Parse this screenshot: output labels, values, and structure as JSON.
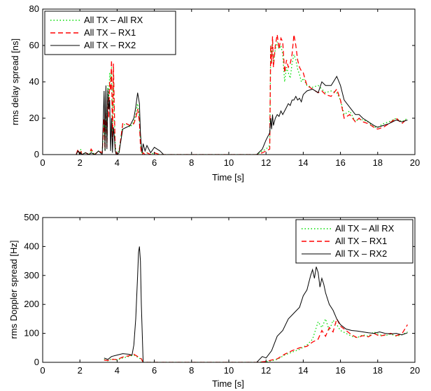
{
  "chart_data": [
    {
      "type": "line",
      "title": "",
      "xlabel": "Time [s]",
      "ylabel": "rms delay spread [ns]",
      "xlim": [
        0,
        20
      ],
      "ylim": [
        0,
        80
      ],
      "xticks": [
        0,
        2,
        4,
        6,
        8,
        10,
        12,
        14,
        16,
        18,
        20
      ],
      "yticks": [
        0,
        20,
        40,
        60,
        80
      ],
      "grid": false,
      "legend_position": "top-left",
      "series": [
        {
          "name": "All TX – All RX",
          "color": "#00dd00",
          "style": "dotted",
          "x": [
            1.8,
            1.9,
            2.0,
            2.05,
            2.1,
            2.3,
            2.5,
            2.6,
            2.8,
            3.0,
            3.2,
            3.3,
            3.35,
            3.4,
            3.45,
            3.5,
            3.55,
            3.6,
            3.65,
            3.7,
            3.75,
            3.8,
            3.85,
            3.9,
            3.95,
            4.0,
            4.1,
            4.3,
            4.5,
            4.7,
            4.9,
            5.0,
            5.1,
            5.2,
            5.25,
            5.3,
            5.35,
            5.4,
            5.5,
            5.6,
            5.8,
            6.0,
            6.3,
            6.5,
            11.5,
            11.8,
            12.0,
            12.2,
            12.25,
            12.3,
            12.35,
            12.4,
            12.5,
            12.6,
            12.7,
            12.8,
            12.9,
            13.0,
            13.1,
            13.2,
            13.3,
            13.4,
            13.5,
            13.6,
            13.7,
            13.8,
            13.9,
            14.0,
            14.2,
            14.5,
            14.8,
            15.0,
            15.2,
            15.5,
            15.8,
            16.0,
            16.2,
            16.5,
            16.8,
            17.0,
            17.2,
            17.5,
            17.8,
            18.0,
            18.3,
            18.6,
            19.0,
            19.3,
            19.6
          ],
          "y": [
            0,
            2,
            0,
            3,
            0,
            1,
            0,
            2,
            0,
            2,
            1,
            18,
            2,
            28,
            5,
            38,
            30,
            45,
            40,
            48,
            10,
            44,
            20,
            5,
            1,
            0,
            2,
            16,
            17,
            15,
            18,
            22,
            28,
            20,
            8,
            2,
            0,
            1,
            0,
            1,
            0,
            1,
            0,
            0,
            0,
            2,
            3,
            5,
            60,
            55,
            62,
            50,
            58,
            62,
            58,
            60,
            55,
            40,
            48,
            45,
            42,
            50,
            55,
            52,
            47,
            44,
            40,
            42,
            38,
            37,
            38,
            36,
            34,
            35,
            34,
            30,
            22,
            24,
            18,
            20,
            19,
            18,
            15,
            15,
            17,
            18,
            20,
            18,
            20
          ]
        },
        {
          "name": "All TX – RX1",
          "color": "#ff0000",
          "style": "dashed",
          "x": [
            1.8,
            1.9,
            2.0,
            2.05,
            2.1,
            2.3,
            2.5,
            2.6,
            2.8,
            3.0,
            3.2,
            3.3,
            3.35,
            3.4,
            3.45,
            3.5,
            3.55,
            3.6,
            3.65,
            3.7,
            3.75,
            3.8,
            3.85,
            3.9,
            3.95,
            4.0,
            4.1,
            4.3,
            4.5,
            4.7,
            4.9,
            5.0,
            5.1,
            5.2,
            5.25,
            5.3,
            5.35,
            5.4,
            5.5,
            5.6,
            5.8,
            6.0,
            6.3,
            6.5,
            11.5,
            11.8,
            12.0,
            12.2,
            12.25,
            12.3,
            12.35,
            12.4,
            12.5,
            12.6,
            12.7,
            12.8,
            12.9,
            13.0,
            13.1,
            13.2,
            13.3,
            13.4,
            13.5,
            13.6,
            13.7,
            13.8,
            13.9,
            14.0,
            14.2,
            14.5,
            14.8,
            15.0,
            15.2,
            15.5,
            15.8,
            16.0,
            16.2,
            16.5,
            16.8,
            17.0,
            17.2,
            17.5,
            17.8,
            18.0,
            18.3,
            18.6,
            19.0,
            19.3,
            19.6
          ],
          "y": [
            0,
            3,
            0,
            2,
            0,
            1,
            0,
            3,
            0,
            2,
            1,
            20,
            3,
            30,
            4,
            32,
            20,
            40,
            35,
            52,
            5,
            50,
            25,
            3,
            1,
            0,
            1,
            17,
            17,
            16,
            17,
            20,
            25,
            18,
            5,
            1,
            0,
            1,
            0,
            1,
            0,
            1,
            0,
            0,
            0,
            1,
            2,
            3,
            60,
            50,
            65,
            48,
            60,
            66,
            58,
            64,
            62,
            45,
            52,
            48,
            50,
            55,
            66,
            60,
            52,
            48,
            46,
            45,
            38,
            36,
            34,
            35,
            33,
            32,
            36,
            30,
            20,
            22,
            18,
            20,
            18,
            17,
            15,
            14,
            15,
            17,
            20,
            17,
            20
          ]
        },
        {
          "name": "All TX – RX2",
          "color": "#000000",
          "style": "solid",
          "x": [
            1.8,
            1.9,
            2.0,
            2.05,
            2.1,
            2.3,
            2.5,
            2.6,
            2.8,
            3.0,
            3.2,
            3.3,
            3.35,
            3.4,
            3.45,
            3.5,
            3.55,
            3.6,
            3.65,
            3.7,
            3.75,
            3.8,
            3.85,
            3.9,
            3.95,
            4.0,
            4.1,
            4.3,
            4.5,
            4.7,
            4.9,
            5.0,
            5.1,
            5.2,
            5.25,
            5.3,
            5.35,
            5.4,
            5.5,
            5.6,
            5.8,
            6.0,
            6.3,
            6.5,
            11.5,
            11.8,
            12.0,
            12.2,
            12.25,
            12.3,
            12.35,
            12.4,
            12.5,
            12.6,
            12.7,
            12.8,
            12.9,
            13.0,
            13.1,
            13.2,
            13.3,
            13.4,
            13.5,
            13.6,
            13.7,
            13.8,
            13.9,
            14.0,
            14.2,
            14.5,
            14.8,
            15.0,
            15.2,
            15.5,
            15.8,
            16.0,
            16.2,
            16.5,
            16.8,
            17.0,
            17.2,
            17.5,
            17.8,
            18.0,
            18.3,
            18.6,
            19.0,
            19.3,
            19.6
          ],
          "y": [
            0,
            2,
            0,
            1,
            0,
            1,
            0,
            1,
            0,
            2,
            0,
            35,
            2,
            38,
            3,
            36,
            25,
            30,
            2,
            20,
            1,
            15,
            10,
            2,
            0,
            0,
            1,
            14,
            15,
            16,
            20,
            26,
            34,
            28,
            12,
            5,
            1,
            6,
            2,
            5,
            1,
            4,
            2,
            0,
            0,
            3,
            8,
            12,
            20,
            14,
            22,
            16,
            20,
            22,
            21,
            24,
            22,
            24,
            26,
            28,
            27,
            30,
            30,
            32,
            30,
            31,
            29,
            33,
            35,
            36,
            34,
            40,
            38,
            38,
            43,
            38,
            30,
            26,
            22,
            22,
            20,
            18,
            16,
            15,
            16,
            17,
            19,
            18,
            19
          ]
        }
      ]
    },
    {
      "type": "line",
      "title": "",
      "xlabel": "Time [s]",
      "ylabel": "rms Doppler spread [Hz]",
      "xlim": [
        0,
        20
      ],
      "ylim": [
        0,
        500
      ],
      "xticks": [
        0,
        2,
        4,
        6,
        8,
        10,
        12,
        14,
        16,
        18,
        20
      ],
      "yticks": [
        0,
        100,
        200,
        300,
        400,
        500
      ],
      "grid": false,
      "legend_position": "top-right",
      "series": [
        {
          "name": "All TX – All RX",
          "color": "#00dd00",
          "style": "dotted",
          "x": [
            3.3,
            3.5,
            3.7,
            4.0,
            4.3,
            4.6,
            4.9,
            5.1,
            5.3,
            5.4,
            11.5,
            12.0,
            12.3,
            12.6,
            13.0,
            13.4,
            13.8,
            14.2,
            14.5,
            14.8,
            15.0,
            15.2,
            15.4,
            15.6,
            15.8,
            16.0,
            16.3,
            16.6,
            16.9,
            17.2,
            17.5,
            17.8,
            18.1,
            18.4,
            18.7,
            19.0,
            19.3,
            19.6
          ],
          "y": [
            10,
            5,
            12,
            8,
            15,
            20,
            25,
            18,
            10,
            0,
            0,
            2,
            5,
            10,
            25,
            35,
            45,
            60,
            80,
            140,
            120,
            150,
            110,
            145,
            130,
            110,
            100,
            90,
            85,
            95,
            90,
            105,
            95,
            92,
            98,
            90,
            95,
            105
          ]
        },
        {
          "name": "All TX – RX1",
          "color": "#ff0000",
          "style": "dashed",
          "x": [
            3.3,
            3.5,
            3.7,
            4.0,
            4.3,
            4.6,
            4.9,
            5.1,
            5.3,
            5.4,
            11.5,
            12.0,
            12.3,
            12.6,
            13.0,
            13.4,
            13.8,
            14.2,
            14.5,
            14.8,
            15.0,
            15.2,
            15.4,
            15.6,
            15.8,
            16.0,
            16.3,
            16.6,
            16.9,
            17.2,
            17.5,
            17.8,
            18.1,
            18.4,
            18.7,
            19.0,
            19.3,
            19.6
          ],
          "y": [
            8,
            6,
            10,
            10,
            18,
            22,
            28,
            20,
            12,
            0,
            0,
            3,
            8,
            12,
            28,
            40,
            50,
            55,
            70,
            80,
            110,
            90,
            120,
            105,
            150,
            125,
            110,
            95,
            85,
            92,
            88,
            100,
            90,
            95,
            100,
            92,
            98,
            130
          ]
        },
        {
          "name": "All TX – RX2",
          "color": "#000000",
          "style": "solid",
          "x": [
            3.3,
            3.5,
            3.7,
            4.0,
            4.3,
            4.6,
            4.8,
            4.9,
            5.0,
            5.1,
            5.15,
            5.2,
            5.25,
            5.3,
            5.4,
            11.5,
            11.8,
            12.0,
            12.3,
            12.6,
            12.9,
            13.2,
            13.5,
            13.8,
            14.0,
            14.2,
            14.4,
            14.5,
            14.6,
            14.7,
            14.8,
            14.9,
            15.0,
            15.1,
            15.2,
            15.4,
            15.6,
            15.8,
            16.0,
            16.3,
            16.6,
            16.9,
            17.2,
            17.5,
            17.8,
            18.1,
            18.4,
            18.7,
            19.0,
            19.3,
            19.6
          ],
          "y": [
            15,
            10,
            20,
            25,
            30,
            28,
            25,
            60,
            150,
            300,
            380,
            400,
            350,
            200,
            0,
            0,
            20,
            15,
            40,
            90,
            110,
            150,
            170,
            190,
            230,
            250,
            300,
            320,
            290,
            330,
            310,
            260,
            290,
            270,
            240,
            200,
            180,
            150,
            130,
            115,
            110,
            108,
            105,
            102,
            100,
            105,
            100,
            98,
            100,
            95,
            102
          ]
        }
      ]
    }
  ]
}
